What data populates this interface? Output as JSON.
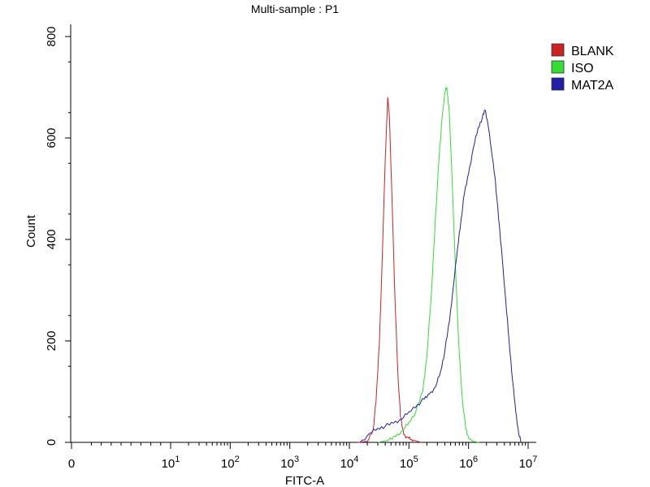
{
  "chart_data": {
    "type": "line",
    "title": "Multi-sample : P1",
    "xlabel": "FITC-A",
    "ylabel": "Count",
    "x_scale": "log",
    "x_tick_labels": [
      {
        "value": 0,
        "base": "0",
        "exp": ""
      },
      {
        "value": 10,
        "base": "10",
        "exp": "1"
      },
      {
        "value": 100,
        "base": "10",
        "exp": "2"
      },
      {
        "value": 1000,
        "base": "10",
        "exp": "3"
      },
      {
        "value": 10000,
        "base": "10",
        "exp": "4"
      },
      {
        "value": 100000,
        "base": "10",
        "exp": "5"
      },
      {
        "value": 1000000,
        "base": "10",
        "exp": "6"
      },
      {
        "value": 10000000,
        "base": "10",
        "exp": "7"
      }
    ],
    "y_ticks": [
      "0",
      "200",
      "400",
      "600",
      "800"
    ],
    "ylim": [
      0,
      800
    ],
    "legend_position": "top-right",
    "series": [
      {
        "name": "BLANK",
        "color": "#cc2222",
        "points": [
          [
            14000,
            0
          ],
          [
            20000,
            2
          ],
          [
            25000,
            25
          ],
          [
            28000,
            80
          ],
          [
            32000,
            200
          ],
          [
            36000,
            380
          ],
          [
            40000,
            560
          ],
          [
            44000,
            680
          ],
          [
            47000,
            640
          ],
          [
            52000,
            480
          ],
          [
            58000,
            290
          ],
          [
            65000,
            140
          ],
          [
            72000,
            50
          ],
          [
            82000,
            15
          ],
          [
            95000,
            10
          ],
          [
            110000,
            6
          ],
          [
            130000,
            3
          ],
          [
            160000,
            0
          ]
        ]
      },
      {
        "name": "ISO",
        "color": "#33dd33",
        "points": [
          [
            30000,
            0
          ],
          [
            45000,
            4
          ],
          [
            60000,
            12
          ],
          [
            80000,
            25
          ],
          [
            100000,
            40
          ],
          [
            130000,
            60
          ],
          [
            170000,
            100
          ],
          [
            200000,
            170
          ],
          [
            240000,
            300
          ],
          [
            280000,
            450
          ],
          [
            320000,
            560
          ],
          [
            360000,
            640
          ],
          [
            400000,
            690
          ],
          [
            430000,
            700
          ],
          [
            470000,
            660
          ],
          [
            530000,
            520
          ],
          [
            600000,
            350
          ],
          [
            680000,
            200
          ],
          [
            780000,
            90
          ],
          [
            900000,
            25
          ],
          [
            1000000,
            8
          ],
          [
            1200000,
            2
          ],
          [
            1500000,
            0
          ]
        ]
      },
      {
        "name": "MAT2A",
        "color": "#1f1fa8",
        "points": [
          [
            15000,
            0
          ],
          [
            22000,
            18
          ],
          [
            30000,
            28
          ],
          [
            40000,
            32
          ],
          [
            55000,
            38
          ],
          [
            75000,
            45
          ],
          [
            100000,
            60
          ],
          [
            140000,
            75
          ],
          [
            180000,
            85
          ],
          [
            220000,
            95
          ],
          [
            280000,
            110
          ],
          [
            340000,
            140
          ],
          [
            400000,
            180
          ],
          [
            480000,
            240
          ],
          [
            560000,
            310
          ],
          [
            650000,
            380
          ],
          [
            750000,
            440
          ],
          [
            850000,
            490
          ],
          [
            1000000,
            530
          ],
          [
            1200000,
            580
          ],
          [
            1450000,
            620
          ],
          [
            1700000,
            640
          ],
          [
            1900000,
            655
          ],
          [
            2100000,
            630
          ],
          [
            2400000,
            580
          ],
          [
            2800000,
            520
          ],
          [
            3200000,
            440
          ],
          [
            3700000,
            360
          ],
          [
            4200000,
            280
          ],
          [
            4800000,
            200
          ],
          [
            5500000,
            120
          ],
          [
            6200000,
            60
          ],
          [
            7000000,
            15
          ],
          [
            7600000,
            0
          ]
        ]
      }
    ]
  }
}
